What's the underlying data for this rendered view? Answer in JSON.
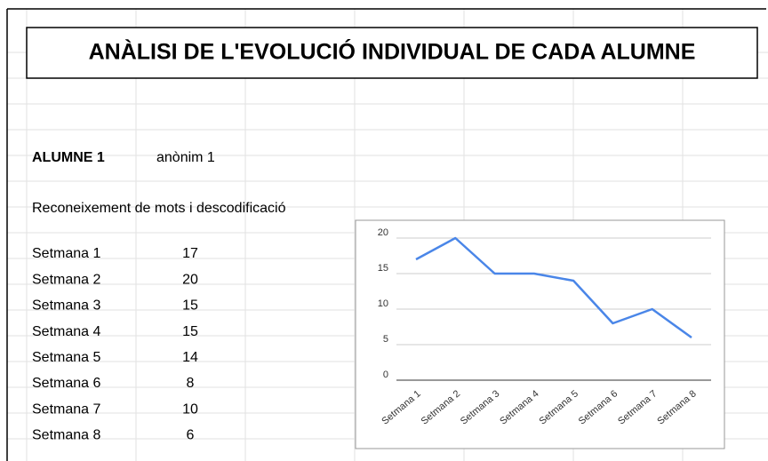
{
  "title": "ANÀLISI DE L'EVOLUCIÓ INDIVIDUAL DE CADA ALUMNE",
  "student": {
    "label": "ALUMNE 1",
    "name": "anònim 1"
  },
  "section": "Reconeixement de mots i descodificació",
  "table": {
    "rows": [
      [
        "Setmana 1",
        17
      ],
      [
        "Setmana 2",
        20
      ],
      [
        "Setmana 3",
        15
      ],
      [
        "Setmana 4",
        15
      ],
      [
        "Setmana 5",
        14
      ],
      [
        "Setmana 6",
        8
      ],
      [
        "Setmana 7",
        10
      ],
      [
        "Setmana 8",
        6
      ]
    ]
  },
  "chart_data": {
    "type": "line",
    "categories": [
      "Setmana 1",
      "Setmana 2",
      "Setmana 3",
      "Setmana 4",
      "Setmana 5",
      "Setmana 6",
      "Setmana 7",
      "Setmana 8"
    ],
    "values": [
      17,
      20,
      15,
      15,
      14,
      8,
      10,
      6
    ],
    "color": "#4a86e8",
    "ylim": [
      0,
      20
    ],
    "yticks": [
      0,
      5,
      10,
      15,
      20
    ],
    "grid": true
  }
}
